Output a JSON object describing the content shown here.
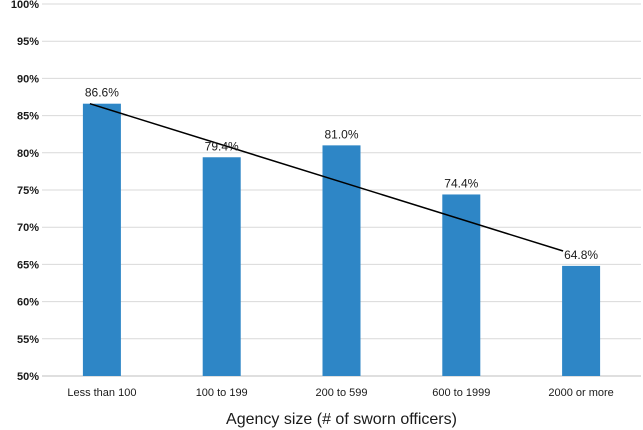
{
  "chart_data": {
    "type": "bar",
    "title": "",
    "xlabel": "Agency size (# of sworn officers)",
    "ylabel": "",
    "categories": [
      "Less than 100",
      "100 to 199",
      "200 to 599",
      "600 to 1999",
      "2000 or more"
    ],
    "values": [
      86.6,
      79.4,
      81.0,
      74.4,
      64.8
    ],
    "value_labels": [
      "86.6%",
      "79.4%",
      "81.0%",
      "74.4%",
      "64.8%"
    ],
    "ylim": [
      50,
      100
    ],
    "yticks": [
      50,
      55,
      60,
      65,
      70,
      75,
      80,
      85,
      90,
      95,
      100
    ],
    "ytick_labels": [
      "50%",
      "55%",
      "60%",
      "65%",
      "70%",
      "75%",
      "80%",
      "85%",
      "90%",
      "95%",
      "100%"
    ],
    "grid": true,
    "trendline": {
      "type": "linear",
      "start": 86.6,
      "end": 66.8
    },
    "colors": {
      "bar": "#2e86c6",
      "grid": "#d9d9d9",
      "trend": "#000000",
      "axis": "#bfbfbf"
    }
  }
}
